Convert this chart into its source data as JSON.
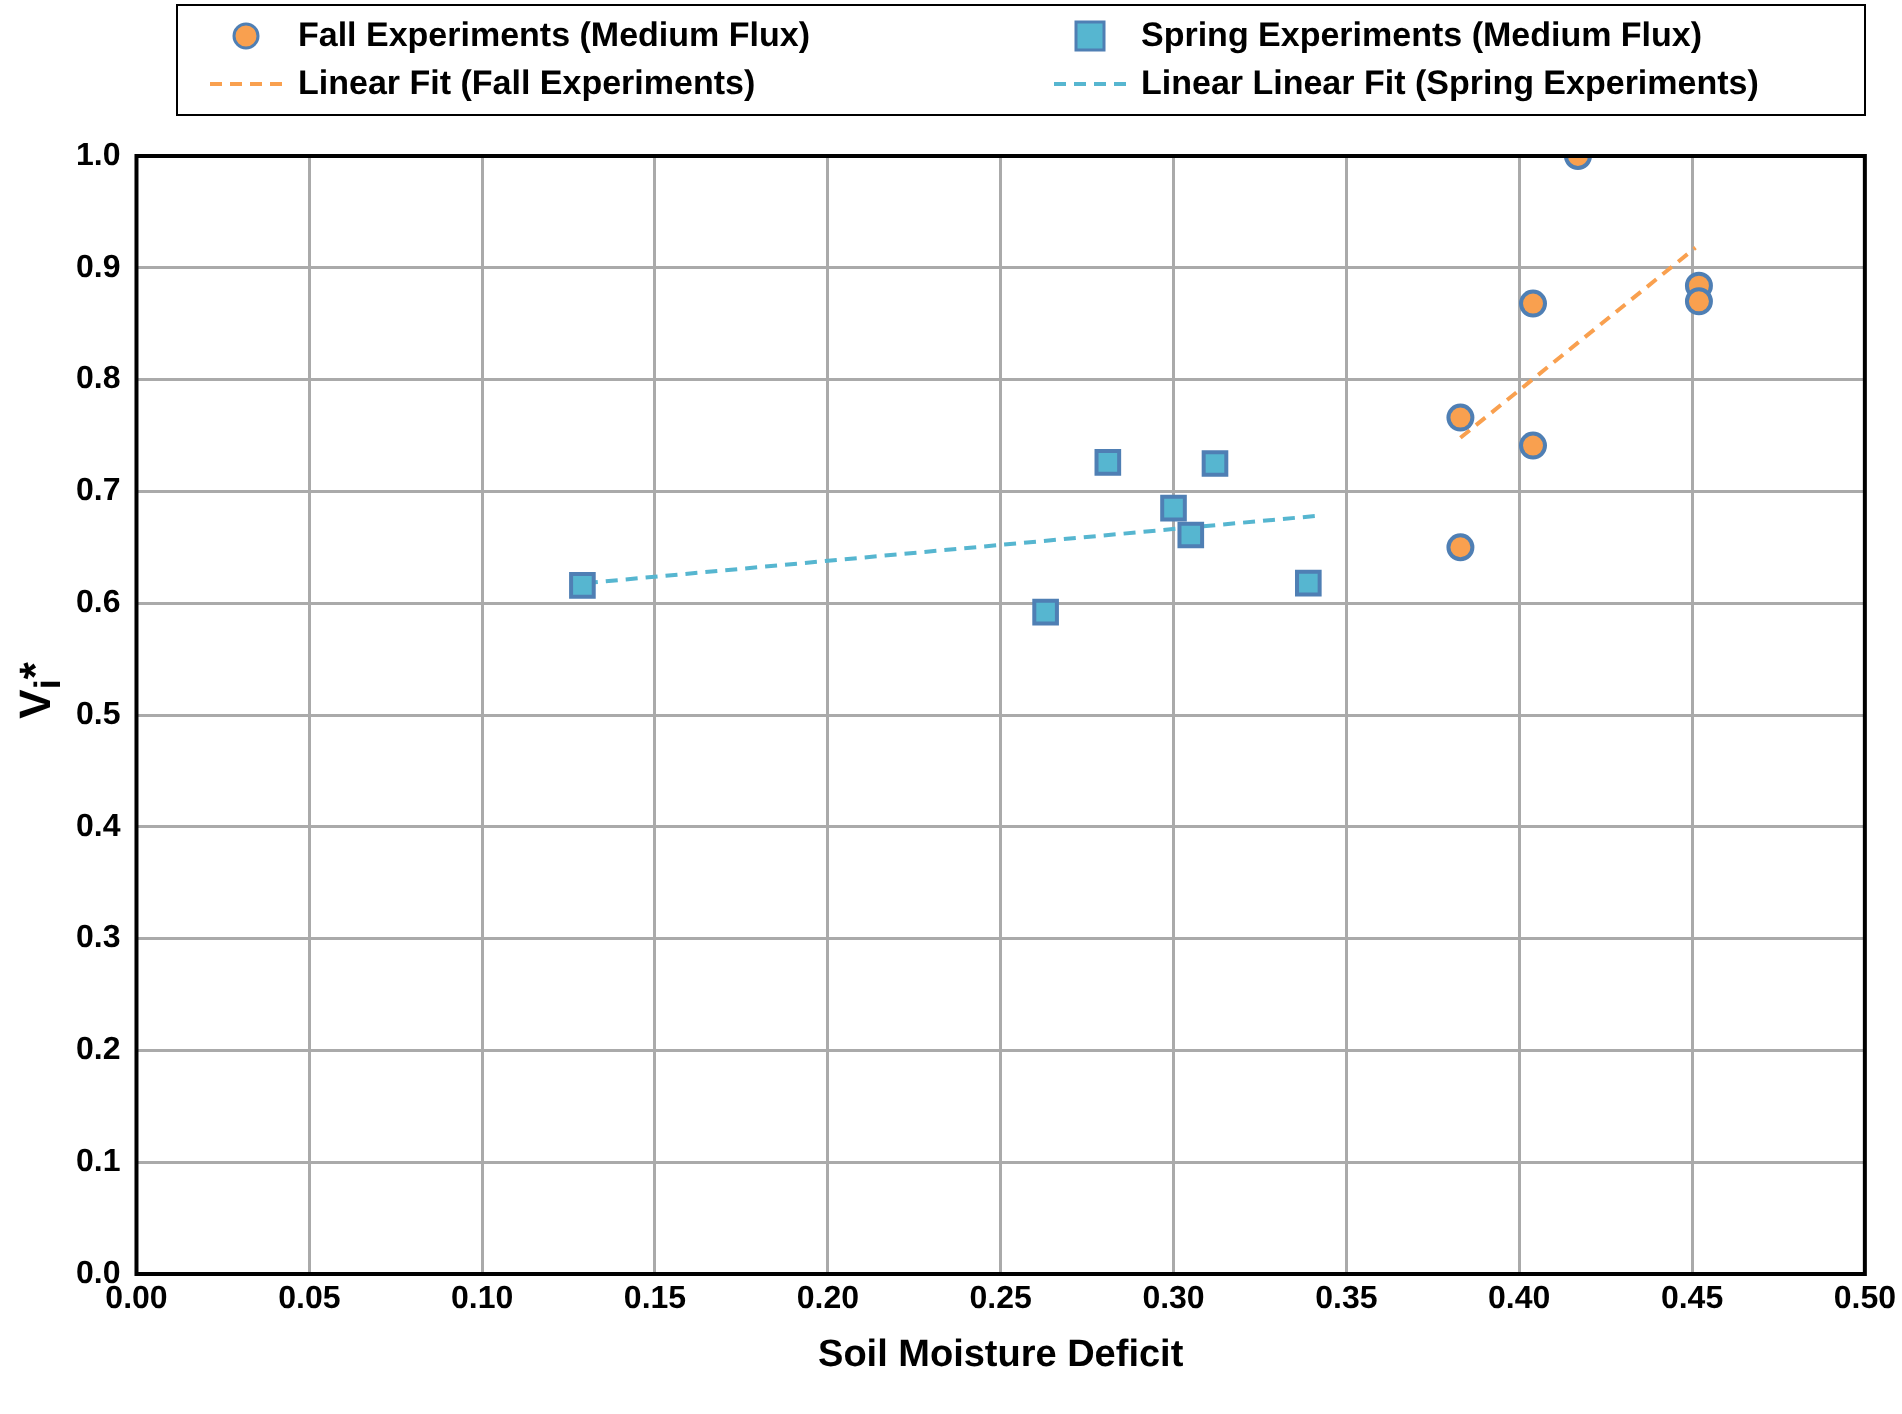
{
  "chart_data": {
    "type": "scatter",
    "xlabel": "Soil Moisture Deficit",
    "ylabel": "V$_{i}$*",
    "xlim": [
      0,
      0.5
    ],
    "ylim": [
      0,
      1
    ],
    "xticks": [
      {
        "value": 0,
        "label": "0.00"
      },
      {
        "value": 0.05,
        "label": "0.05"
      },
      {
        "value": 0.1,
        "label": "0.10"
      },
      {
        "value": 0.15,
        "label": "0.15"
      },
      {
        "value": 0.2,
        "label": "0.20"
      },
      {
        "value": 0.25,
        "label": "0.25"
      },
      {
        "value": 0.3,
        "label": "0.30"
      },
      {
        "value": 0.35,
        "label": "0.35"
      },
      {
        "value": 0.4,
        "label": "0.40"
      },
      {
        "value": 0.45,
        "label": "0.45"
      },
      {
        "value": 0.5,
        "label": "0.50"
      }
    ],
    "yticks": [
      {
        "value": 0,
        "label": "0.0"
      },
      {
        "value": 0.1,
        "label": "0.1"
      },
      {
        "value": 0.2,
        "label": "0.2"
      },
      {
        "value": 0.3,
        "label": "0.3"
      },
      {
        "value": 0.4,
        "label": "0.4"
      },
      {
        "value": 0.5,
        "label": "0.5"
      },
      {
        "value": 0.6,
        "label": "0.6"
      },
      {
        "value": 0.7,
        "label": "0.7"
      },
      {
        "value": 0.8,
        "label": "0.8"
      },
      {
        "value": 0.9,
        "label": "0.9"
      },
      {
        "value": 1,
        "label": "1.0"
      }
    ],
    "grid": true,
    "legend": "top",
    "series": [
      {
        "name": "Fall Experiments (Medium Flux)",
        "type": "scatter",
        "marker": "circle",
        "color": "#f9a04f",
        "x": [
          0.417,
          0.404,
          0.404,
          0.383,
          0.383,
          0.452,
          0.452
        ],
        "values": [
          1.0,
          0.868,
          0.741,
          0.766,
          0.65,
          0.884,
          0.87
        ]
      },
      {
        "name": "Spring Experiments (Medium Flux)",
        "type": "scatter",
        "marker": "square",
        "color": "#56b6d0",
        "x": [
          0.129,
          0.263,
          0.281,
          0.3,
          0.305,
          0.312,
          0.339
        ],
        "values": [
          0.616,
          0.592,
          0.726,
          0.685,
          0.661,
          0.725,
          0.618
        ]
      },
      {
        "name": "Linear Fit (Fall Experiments)",
        "type": "line",
        "marker": "none",
        "line_style": "dashed",
        "color": "#f9a04f",
        "x": [
          0.383,
          0.451
        ],
        "values": [
          0.748,
          0.918
        ]
      },
      {
        "name": "Linear Linear Fit (Spring Experiments)",
        "type": "line",
        "marker": "none",
        "line_style": "dashed",
        "color": "#56b6d0",
        "x": [
          0.13,
          0.341
        ],
        "values": [
          0.618,
          0.678
        ]
      }
    ]
  }
}
